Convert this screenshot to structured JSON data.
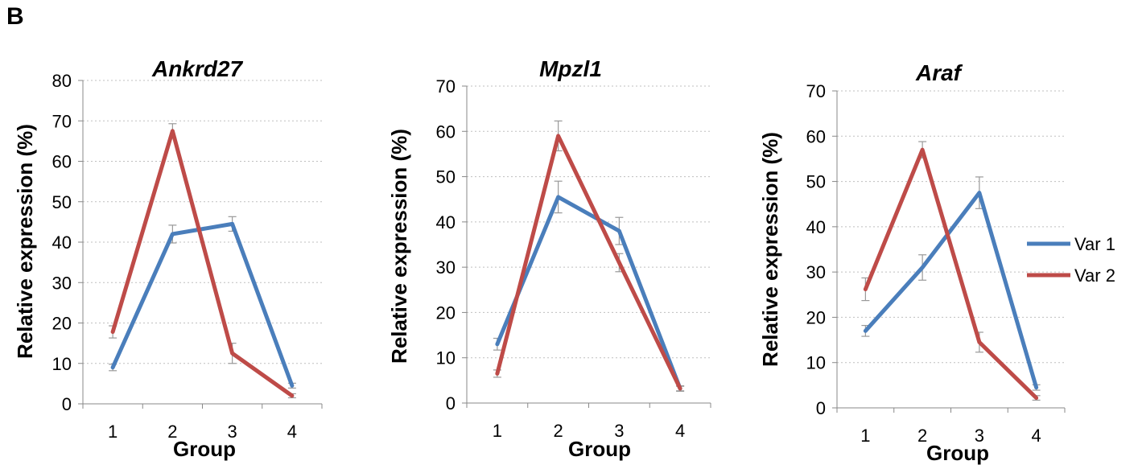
{
  "panel_label": "B",
  "legend": {
    "position": "right",
    "entries": [
      {
        "name": "Var 1",
        "color": "#4a7ebb"
      },
      {
        "name": "Var 2",
        "color": "#be4b48"
      }
    ]
  },
  "chart_data": [
    {
      "type": "line",
      "title": "Ankrd27",
      "xlabel": "Group",
      "ylabel": "Relative expression  (%)",
      "categories": [
        "1",
        "2",
        "3",
        "4"
      ],
      "ylim": [
        0,
        80
      ],
      "yticks": [
        "0",
        "10",
        "20",
        "30",
        "40",
        "50",
        "60",
        "70",
        "80"
      ],
      "grid": "horizontal dotted",
      "series": [
        {
          "name": "Var 1",
          "color": "#4a7ebb",
          "values": [
            9,
            42,
            44.5,
            4.5
          ],
          "errors": [
            0.8,
            2.2,
            1.8,
            0.6
          ]
        },
        {
          "name": "Var 2",
          "color": "#be4b48",
          "values": [
            17.8,
            67.5,
            12.5,
            2
          ],
          "errors": [
            1.5,
            1.8,
            2.5,
            0.5
          ]
        }
      ]
    },
    {
      "type": "line",
      "title": "Mpzl1",
      "xlabel": "Group",
      "ylabel": "Relative expression  (%)",
      "categories": [
        "1",
        "2",
        "3",
        "4"
      ],
      "ylim": [
        0,
        70
      ],
      "yticks": [
        "0",
        "10",
        "20",
        "30",
        "40",
        "50",
        "60",
        "70"
      ],
      "grid": "horizontal dotted",
      "series": [
        {
          "name": "Var 1",
          "color": "#4a7ebb",
          "values": [
            13,
            45.5,
            38,
            3.2
          ],
          "errors": [
            1.3,
            3.5,
            3,
            0.6
          ]
        },
        {
          "name": "Var 2",
          "color": "#be4b48",
          "values": [
            6.5,
            59,
            31,
            3.2
          ],
          "errors": [
            0.8,
            3.3,
            2,
            0.5
          ]
        }
      ]
    },
    {
      "type": "line",
      "title": "Araf",
      "xlabel": "Group",
      "ylabel": "Relative expression  (%)",
      "categories": [
        "1",
        "2",
        "3",
        "4"
      ],
      "ylim": [
        0,
        70
      ],
      "yticks": [
        "0",
        "10",
        "20",
        "30",
        "40",
        "50",
        "60",
        "70"
      ],
      "grid": "horizontal dotted",
      "series": [
        {
          "name": "Var 1",
          "color": "#4a7ebb",
          "values": [
            17,
            31,
            47.5,
            4.5
          ],
          "errors": [
            1.2,
            2.8,
            3.5,
            0.6
          ]
        },
        {
          "name": "Var 2",
          "color": "#be4b48",
          "values": [
            26.2,
            57,
            14.5,
            2.2
          ],
          "errors": [
            2.5,
            1.8,
            2.2,
            0.5
          ]
        }
      ]
    }
  ]
}
